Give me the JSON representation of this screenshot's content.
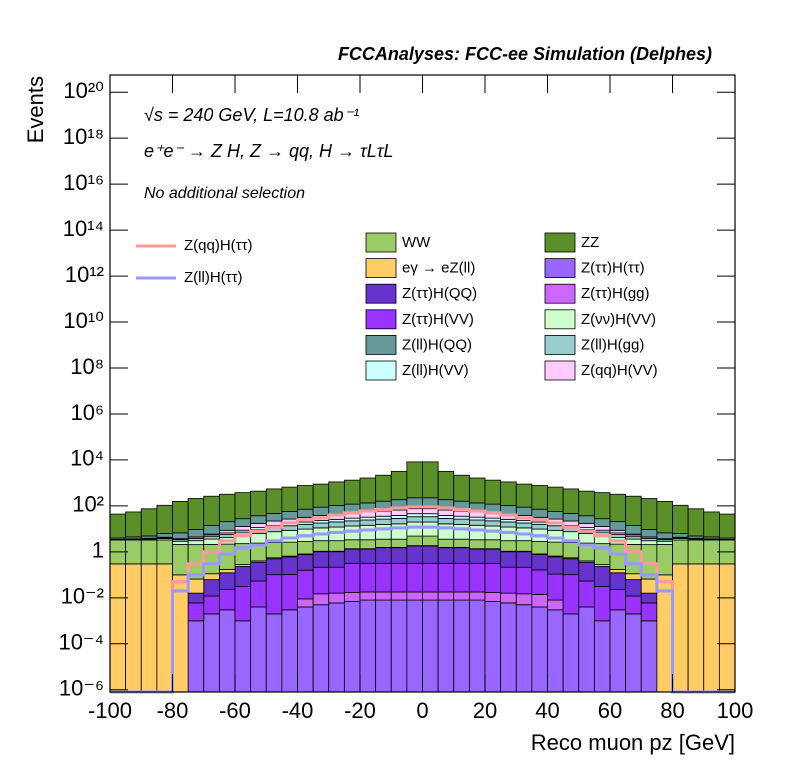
{
  "chart_data": {
    "type": "stacked_histogram",
    "title": "FCCAnalyses: FCC-ee Simulation (Delphes)",
    "annotations": [
      "√s = 240 GeV, L=10.8 ab⁻¹",
      "e⁺e⁻ → Z H, Z → qq, H → τLτL",
      "No additional selection"
    ],
    "x_label": "Reco muon pz [GeV]",
    "y_label": "Events",
    "log_y": true,
    "xlim": [
      -100,
      100
    ],
    "ylim": [
      8e-07,
      5.6e+20
    ],
    "xticks": [
      -100,
      -80,
      -60,
      -40,
      -20,
      0,
      20,
      40,
      60,
      80,
      100
    ],
    "yticks": [
      {
        "value": 1e-06,
        "label": "10⁻⁶"
      },
      {
        "value": 0.0001,
        "label": "10⁻⁴"
      },
      {
        "value": 0.01,
        "label": "10⁻²"
      },
      1,
      {
        "value": 100,
        "label": "10²"
      },
      {
        "value": 10000,
        "label": "10⁴"
      },
      {
        "value": 1000000.0,
        "label": "10⁶"
      },
      {
        "value": 100000000.0,
        "label": "10⁸"
      },
      {
        "value": 10000000000.0,
        "label": "10¹⁰"
      },
      {
        "value": 1000000000000.0,
        "label": "10¹²"
      },
      {
        "value": 100000000000000.0,
        "label": "10¹⁴"
      },
      {
        "value": 1e+16,
        "label": "10¹⁶"
      },
      {
        "value": 1e+18,
        "label": "10¹⁸"
      },
      {
        "value": 1e+20,
        "label": "10²⁰"
      }
    ],
    "bins": [
      -100,
      -95,
      -90,
      -85,
      -80,
      -75,
      -70,
      -65,
      -60,
      -55,
      -50,
      -45,
      -40,
      -35,
      -30,
      -25,
      -20,
      -15,
      -10,
      -5,
      0,
      5,
      10,
      15,
      20,
      25,
      30,
      35,
      40,
      45,
      50,
      55,
      60,
      65,
      70,
      75,
      80,
      85,
      90,
      95,
      100
    ],
    "series": [
      {
        "name": "Z(ττ)H(ττ)",
        "color": "#9966ff",
        "values": [
          0,
          0,
          0,
          0,
          0,
          0.001,
          0.002,
          0.003,
          0.001,
          0.004,
          0.002,
          0.003,
          0.004,
          0.005,
          0.006,
          0.007,
          0.008,
          0.008,
          0.008,
          0.008,
          0.008,
          0.008,
          0.008,
          0.008,
          0.007,
          0.006,
          0.005,
          0.004,
          0.003,
          0.002,
          0.004,
          0.001,
          0.003,
          0.002,
          0.001,
          0,
          0,
          0,
          0,
          0
        ]
      },
      {
        "name": "Z(ττ)H(gg)",
        "color": "#cc66ff",
        "values": [
          0,
          0,
          0,
          0,
          0,
          0,
          0,
          0,
          0,
          0,
          0,
          0,
          0.005,
          0.01,
          0.01,
          0.01,
          0.01,
          0.01,
          0.01,
          0.01,
          0.01,
          0.01,
          0.01,
          0.01,
          0.01,
          0.01,
          0.01,
          0.01,
          0.005,
          0,
          0,
          0,
          0,
          0,
          0,
          0,
          0,
          0,
          0,
          0
        ]
      },
      {
        "name": "Z(ττ)H(VV)",
        "color": "#9933ff",
        "values": [
          0,
          0,
          0,
          0,
          0,
          0.005,
          0.01,
          0.02,
          0.03,
          0.05,
          0.1,
          0.1,
          0.15,
          0.2,
          0.2,
          0.3,
          0.3,
          0.3,
          0.3,
          0.3,
          0.3,
          0.3,
          0.3,
          0.3,
          0.3,
          0.2,
          0.2,
          0.15,
          0.1,
          0.1,
          0.05,
          0.03,
          0.02,
          0.01,
          0.005,
          0,
          0,
          0,
          0,
          0
        ]
      },
      {
        "name": "Z(ττ)H(QQ)",
        "color": "#6633cc",
        "values": [
          0,
          0,
          0,
          0,
          0,
          0.01,
          0.05,
          0.1,
          0.2,
          0.3,
          0.4,
          0.5,
          0.6,
          0.8,
          0.8,
          1,
          1,
          1.2,
          1.2,
          1.5,
          1.5,
          1.2,
          1.2,
          1,
          1,
          0.8,
          0.8,
          0.6,
          0.5,
          0.4,
          0.3,
          0.2,
          0.1,
          0.05,
          0.01,
          0,
          0,
          0,
          0,
          0
        ]
      },
      {
        "name": "eγ → eZ(ll)",
        "color": "#ffcc66",
        "values": [
          0.3,
          0.3,
          0.3,
          0.3,
          0.1,
          0.05,
          0.05,
          0.05,
          0.05,
          0.05,
          0.05,
          0.05,
          0.05,
          0.05,
          0.05,
          0.05,
          0.05,
          0.05,
          0.05,
          0.05,
          0.05,
          0.05,
          0.05,
          0.05,
          0.05,
          0.05,
          0.05,
          0.05,
          0.05,
          0.05,
          0.05,
          0.05,
          0.05,
          0.05,
          0.05,
          0.1,
          0.3,
          0.3,
          0.3,
          0.3
        ]
      },
      {
        "name": "WW",
        "color": "#99cc66",
        "values": [
          3,
          3,
          3,
          3,
          2,
          2,
          2,
          2,
          2,
          2,
          2,
          2,
          2,
          2,
          2,
          2,
          2,
          2,
          2,
          3,
          3,
          2,
          2,
          2,
          2,
          2,
          2,
          2,
          2,
          2,
          2,
          2,
          2,
          2,
          2,
          2,
          3,
          3,
          3,
          3
        ]
      },
      {
        "name": "Z(νν)H(VV)",
        "color": "#ccffcc",
        "values": [
          0.1,
          0.2,
          0.3,
          0.5,
          0.8,
          1,
          1.5,
          2,
          3,
          4,
          5,
          6,
          7,
          8,
          9,
          10,
          11,
          12,
          13,
          15,
          15,
          13,
          12,
          11,
          10,
          9,
          8,
          7,
          6,
          5,
          4,
          3,
          2,
          1.5,
          1,
          0.8,
          0.5,
          0.3,
          0.2,
          0.1
        ]
      },
      {
        "name": "Z(ll)H(gg)",
        "color": "#99cccc",
        "values": [
          0.05,
          0.1,
          0.2,
          0.3,
          0.5,
          0.8,
          1,
          1.5,
          2,
          3,
          4,
          5,
          6,
          7,
          8,
          9,
          10,
          11,
          12,
          14,
          14,
          12,
          11,
          10,
          9,
          8,
          7,
          6,
          5,
          4,
          3,
          2,
          1.5,
          1,
          0.8,
          0.5,
          0.3,
          0.2,
          0.1,
          0.05
        ]
      },
      {
        "name": "Z(ll)H(VV)",
        "color": "#ccffff",
        "values": [
          0.05,
          0.08,
          0.1,
          0.2,
          0.3,
          0.5,
          0.8,
          1,
          1.5,
          2,
          2.5,
          3,
          4,
          5,
          6,
          7,
          8,
          9,
          10,
          12,
          12,
          10,
          9,
          8,
          7,
          6,
          5,
          4,
          3,
          2.5,
          2,
          1.5,
          1,
          0.8,
          0.5,
          0.3,
          0.2,
          0.1,
          0.08,
          0.05
        ]
      },
      {
        "name": "Z(qq)H(VV)",
        "color": "#ffccff",
        "values": [
          0.01,
          0.01,
          0.02,
          0.03,
          0.05,
          0.1,
          0.5,
          2,
          4,
          6,
          8,
          10,
          12,
          15,
          18,
          20,
          22,
          25,
          28,
          30,
          30,
          28,
          25,
          22,
          20,
          18,
          15,
          12,
          10,
          8,
          6,
          4,
          2,
          0.5,
          0.1,
          0.05,
          0.03,
          0.02,
          0.01,
          0.01
        ]
      },
      {
        "name": "Z(ll)H(QQ)",
        "color": "#669999",
        "values": [
          0.5,
          0.8,
          1,
          2,
          3,
          5,
          8,
          12,
          15,
          20,
          25,
          30,
          40,
          50,
          60,
          70,
          80,
          100,
          120,
          150,
          150,
          120,
          100,
          80,
          70,
          60,
          50,
          40,
          30,
          25,
          20,
          15,
          12,
          8,
          5,
          3,
          2,
          1,
          0.8,
          0.5
        ]
      },
      {
        "name": "ZZ",
        "color": "#5a8f2a",
        "values": [
          40,
          50,
          70,
          100,
          150,
          200,
          250,
          300,
          350,
          400,
          500,
          600,
          700,
          800,
          1000,
          1200,
          1500,
          2000,
          3000,
          8000,
          8000,
          3000,
          2000,
          1500,
          1200,
          1000,
          800,
          700,
          600,
          500,
          400,
          350,
          300,
          250,
          200,
          150,
          100,
          70,
          50,
          40
        ]
      }
    ],
    "line_series": [
      {
        "name": "Z(qq)H(ττ)",
        "color": "#ff9999",
        "values": [
          0,
          0,
          0,
          0,
          0.05,
          0.3,
          1,
          3,
          5,
          8,
          12,
          18,
          25,
          30,
          40,
          50,
          60,
          70,
          80,
          90,
          90,
          80,
          70,
          60,
          50,
          40,
          30,
          25,
          18,
          12,
          8,
          5,
          3,
          1,
          0.3,
          0.05,
          0,
          0,
          0,
          0
        ]
      },
      {
        "name": "Z(ll)H(ττ)",
        "color": "#9999ff",
        "values": [
          0,
          0,
          0,
          0,
          0.02,
          0.1,
          0.3,
          0.8,
          1.5,
          2,
          3,
          4,
          5,
          6,
          7,
          8,
          9,
          10,
          11,
          12,
          12,
          11,
          10,
          9,
          8,
          7,
          6,
          5,
          4,
          3,
          2,
          1.5,
          0.8,
          0.3,
          0.1,
          0.02,
          0,
          0,
          0,
          0
        ]
      }
    ]
  }
}
